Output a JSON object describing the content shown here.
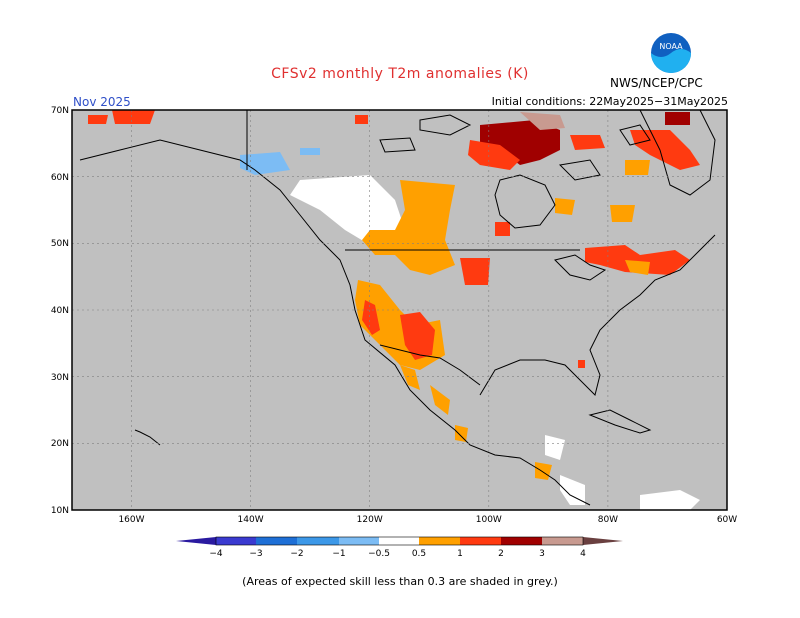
{
  "header": {
    "title": "CFSv2 monthly T2m anomalies (K)",
    "month": "Nov 2025",
    "agency": "NWS/NCEP/CPC",
    "initial_conditions": "Initial conditions: 22May2025−31May2025"
  },
  "logo": {
    "text": "NOAA"
  },
  "map": {
    "extent": {
      "lon": [
        -170,
        -60
      ],
      "lat": [
        10,
        70
      ]
    },
    "lat_labels": [
      "70N",
      "60N",
      "50N",
      "40N",
      "30N",
      "20N",
      "10N"
    ],
    "lon_labels": [
      "160W",
      "140W",
      "120W",
      "100W",
      "80W",
      "60W"
    ],
    "background_color": "#c0c0c0",
    "grid": "dotted"
  },
  "colorbar": {
    "labels": [
      "−4",
      "−3",
      "−2",
      "−1",
      "−0.5",
      "0.5",
      "1",
      "2",
      "3",
      "4"
    ],
    "colors": [
      "#2a1aa0",
      "#3a3ad0",
      "#1e6fd6",
      "#3c98e8",
      "#7cbcf4",
      "#ffffff",
      "#ffa000",
      "#ff3a10",
      "#a00000",
      "#c89a90",
      "#6a4040"
    ]
  },
  "note": "(Areas of expected skill less than 0.3 are shaded in grey.)"
}
